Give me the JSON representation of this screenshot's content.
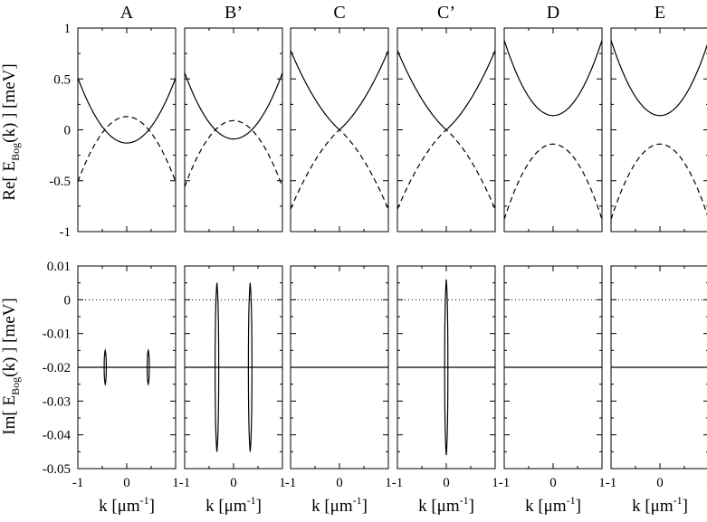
{
  "chart_data": {
    "type": "line",
    "panel_titles": [
      "A",
      "B’",
      "C",
      "C’",
      "D",
      "E"
    ],
    "x_range": [
      -1,
      1
    ],
    "x_tick_labels": [
      "-1",
      "0",
      "1"
    ],
    "x_tick_values": [
      -1,
      0,
      1
    ],
    "top_row": {
      "ylim": [
        -1,
        1
      ],
      "y_tick_values": [
        -1,
        -0.5,
        0,
        0.5,
        1
      ],
      "y_tick_labels": [
        "-1",
        "-0.5",
        "0",
        "0.5",
        "1"
      ],
      "ylabel_main": "Re[ E",
      "ylabel_sub": "Bog",
      "ylabel_tail": "(k) ]  [meV]",
      "series_names": [
        "upper branch (solid)",
        "lower branch (dashed)"
      ],
      "panels": [
        {
          "title": "A",
          "upper": {
            "center": -0.13,
            "curvature": 0.64,
            "gap": 0
          },
          "lower": {
            "center": 0.13,
            "curvature": -0.64
          }
        },
        {
          "title": "B’",
          "upper": {
            "center": -0.09,
            "curvature": 0.65,
            "gap": 0
          },
          "lower": {
            "center": 0.09,
            "curvature": -0.65
          }
        },
        {
          "title": "C",
          "upper": {
            "center": 0.0,
            "curvature": 0.78,
            "gap": 0
          },
          "lower": {
            "center": 0.0,
            "curvature": -0.78
          }
        },
        {
          "title": "C’",
          "upper": {
            "center": 0.0,
            "curvature": 0.78,
            "gap": 0
          },
          "lower": {
            "center": 0.0,
            "curvature": -0.78
          }
        },
        {
          "title": "D",
          "upper": {
            "center": 0.14,
            "curvature": 0.74,
            "gap": 1
          },
          "lower": {
            "center": -0.14,
            "curvature": -0.74
          }
        },
        {
          "title": "E",
          "upper": {
            "center": 0.14,
            "curvature": 0.74,
            "gap": 1
          },
          "lower": {
            "center": -0.14,
            "curvature": -0.74
          }
        }
      ]
    },
    "bottom_row": {
      "ylim": [
        -0.05,
        0.01
      ],
      "y_tick_values": [
        -0.05,
        -0.04,
        -0.03,
        -0.02,
        -0.01,
        0,
        0.01
      ],
      "y_tick_labels": [
        "-0.05",
        "-0.04",
        "-0.03",
        "-0.02",
        "-0.01",
        "0",
        "0.01"
      ],
      "ylabel_main": "Im[ E",
      "ylabel_sub": "Bog",
      "ylabel_tail": "(k) ]  [meV]",
      "baseline_value": -0.02,
      "zero_reference": 0,
      "panels": [
        {
          "title": "A",
          "bubbles": [
            {
              "k": -0.44,
              "width": 0.02,
              "top": -0.015,
              "bottom": -0.025
            },
            {
              "k": 0.44,
              "width": 0.02,
              "top": -0.015,
              "bottom": -0.025
            }
          ]
        },
        {
          "title": "B’",
          "bubbles": [
            {
              "k": -0.34,
              "width": 0.06,
              "top": 0.005,
              "bottom": -0.045
            },
            {
              "k": 0.34,
              "width": 0.06,
              "top": 0.005,
              "bottom": -0.045
            }
          ]
        },
        {
          "title": "C",
          "bubbles": []
        },
        {
          "title": "C’",
          "bubbles": [
            {
              "k": 0.0,
              "width": 0.05,
              "top": 0.006,
              "bottom": -0.046
            }
          ]
        },
        {
          "title": "D",
          "bubbles": []
        },
        {
          "title": "E",
          "bubbles": []
        }
      ]
    },
    "xlabel_main": "k [μm",
    "xlabel_sup": "-1",
    "xlabel_tail": "]"
  }
}
